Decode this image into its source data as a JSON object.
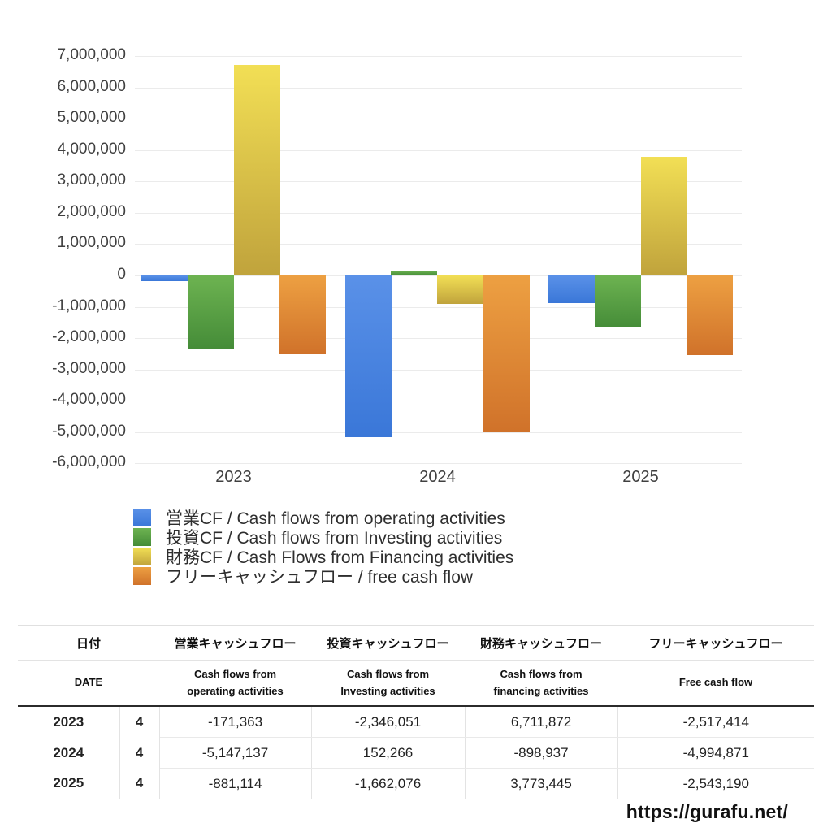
{
  "chart_data": {
    "type": "bar",
    "title": "",
    "xlabel": "",
    "ylabel": "",
    "categories": [
      "2023",
      "2024",
      "2025"
    ],
    "series": [
      {
        "name": "営業CF / Cash flows from operating activities",
        "color": "#4584e0",
        "gradient_top": "#5a91e8",
        "gradient_bottom": "#3a77d8",
        "values": [
          -171363,
          -5147137,
          -881114
        ]
      },
      {
        "name": "投資CF / Cash flows from Investing activities",
        "color": "#57a344",
        "gradient_top": "#6db351",
        "gradient_bottom": "#458c38",
        "values": [
          -2346051,
          152266,
          -1662076
        ]
      },
      {
        "name": "財務CF / Cash Flows from Financing activities",
        "color": "#e3cc46",
        "gradient_top": "#f2df55",
        "gradient_bottom": "#c0a33c",
        "values": [
          6711872,
          -898937,
          3773445
        ]
      },
      {
        "name": "フリーキャッシュフロー / free cash flow",
        "color": "#e0802f",
        "gradient_top": "#eda042",
        "gradient_bottom": "#d0722a",
        "values": [
          -2517414,
          -4994871,
          -2543190
        ]
      }
    ],
    "ylim": [
      -6000000,
      7000000
    ],
    "ytick_interval": 1000000,
    "grid": true,
    "gridline_color": "#ebebeb",
    "axis_text_color": "#404040",
    "legend_position": "bottom-left"
  },
  "table": {
    "header_jp": [
      "日付",
      "営業キャッシュフロー",
      "投資キャッシュフロー",
      "財務キャッシュフロー",
      "フリーキャッシュフロー"
    ],
    "header_en": [
      "DATE",
      "Cash flows from\noperating activities",
      "Cash flows from\nInvesting activities",
      "Cash flows from\nfinancing activities",
      "Free cash flow"
    ],
    "rows": [
      {
        "year": "2023",
        "month": "4",
        "values": [
          "-171,363",
          "-2,346,051",
          "6,711,872",
          "-2,517,414"
        ]
      },
      {
        "year": "2024",
        "month": "4",
        "values": [
          "-5,147,137",
          "152,266",
          "-898,937",
          "-4,994,871"
        ]
      },
      {
        "year": "2025",
        "month": "4",
        "values": [
          "-881,114",
          "-1,662,076",
          "3,773,445",
          "-2,543,190"
        ]
      }
    ],
    "negative_color": "#d8564a",
    "positive_color": "#222222"
  },
  "footer": {
    "url": "https://gurafu.net/"
  }
}
